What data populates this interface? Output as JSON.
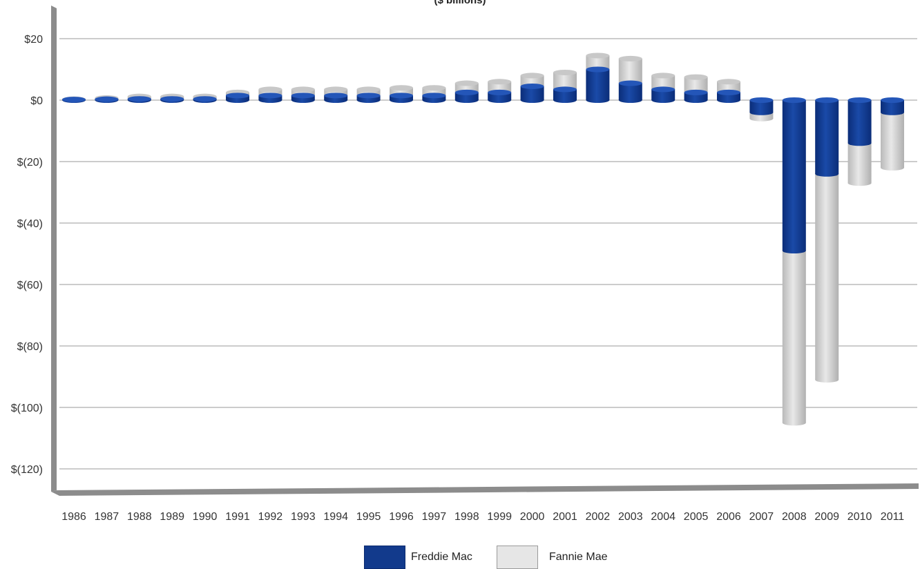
{
  "chart_data": {
    "type": "bar",
    "title": "($ billions)",
    "stacked": true,
    "categories": [
      "1986",
      "1987",
      "1988",
      "1989",
      "1990",
      "1991",
      "1992",
      "1993",
      "1994",
      "1995",
      "1996",
      "1997",
      "1998",
      "1999",
      "2000",
      "2001",
      "2002",
      "2003",
      "2004",
      "2005",
      "2006",
      "2007",
      "2008",
      "2009",
      "2010",
      "2011"
    ],
    "series": [
      {
        "name": "Freddie Mac",
        "color": "#123a8c",
        "values": [
          0.2,
          0.3,
          0.4,
          0.4,
          0.4,
          1.5,
          1.5,
          1.5,
          1.5,
          1.5,
          1.5,
          1.5,
          2.5,
          2.5,
          4.5,
          3.5,
          10,
          5.5,
          3.5,
          2.5,
          2.5,
          -4,
          -49,
          -24,
          -14,
          -4
        ]
      },
      {
        "name": "Fannie Mae",
        "color": "#d4d4d4",
        "values": [
          0.1,
          0.4,
          0.8,
          0.8,
          0.8,
          1.0,
          2.0,
          2.0,
          2.0,
          2.0,
          2.5,
          2.5,
          3.0,
          3.5,
          3.5,
          5.5,
          4.5,
          8.0,
          4.5,
          5.0,
          3.5,
          -2,
          -56,
          -67,
          -13,
          -18
        ]
      }
    ],
    "ylim": [
      -120,
      20
    ],
    "yticks": [
      20,
      0,
      -20,
      -40,
      -60,
      -80,
      -100,
      -120
    ],
    "ytick_labels": [
      "$20",
      "$0",
      "$(20)",
      "$(40)",
      "$(60)",
      "$(80)",
      "$(100)",
      "$(120)"
    ],
    "grid": true,
    "legend_position": "bottom"
  }
}
